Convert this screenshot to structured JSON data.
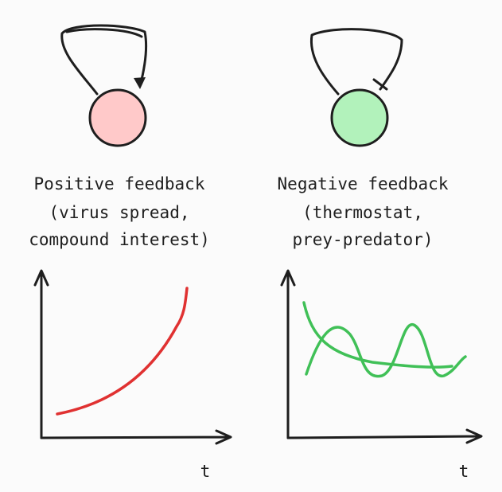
{
  "left": {
    "title": "Positive feedback",
    "lines": [
      "(virus spread,",
      "compound interest)"
    ],
    "axis_label": "t"
  },
  "right": {
    "title": "Negative feedback",
    "lines": [
      "(thermostat,",
      "prey-predator)"
    ],
    "axis_label": "t"
  }
}
